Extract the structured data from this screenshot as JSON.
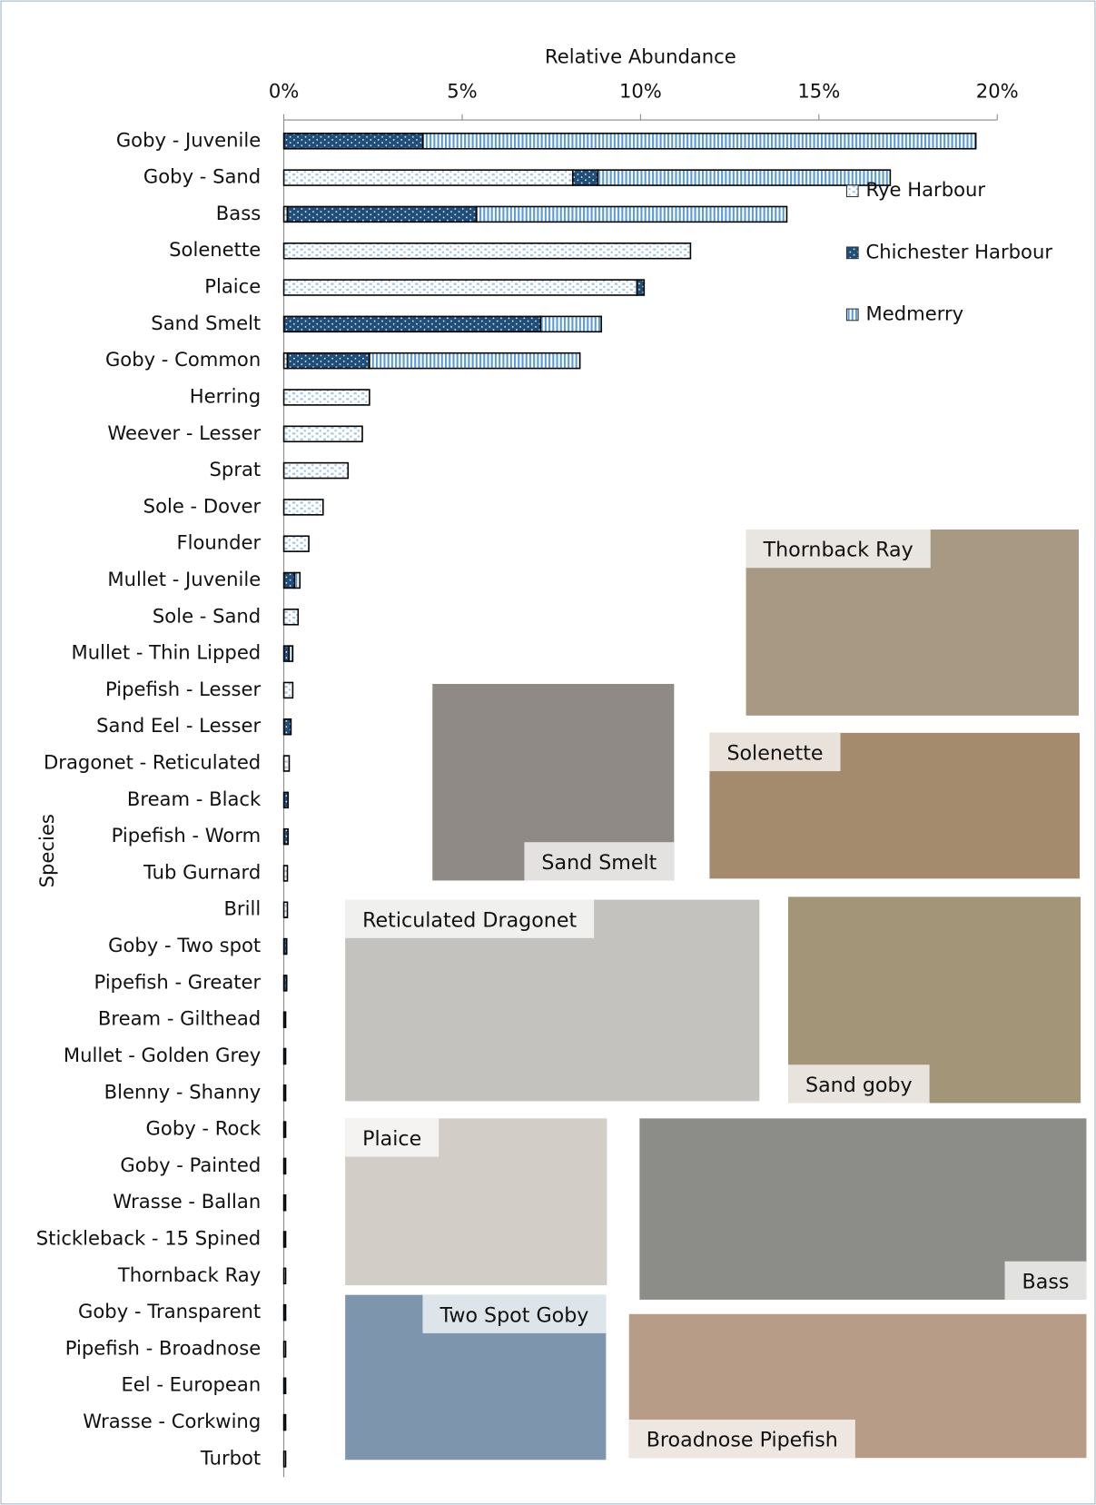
{
  "chart_data": {
    "type": "stacked-bar-horizontal",
    "x_label": "Relative Abundance",
    "y_label": "Species",
    "categories": [
      "Goby - Juvenile",
      "Goby - Sand",
      "Bass",
      "Solenette",
      "Plaice",
      "Sand Smelt",
      "Goby - Common",
      "Herring",
      "Weever - Lesser",
      "Sprat",
      "Sole - Dover",
      "Flounder",
      "Mullet - Juvenile",
      "Sole - Sand",
      "Mullet - Thin Lipped",
      "Pipefish - Lesser",
      "Sand Eel - Lesser",
      "Dragonet - Reticulated",
      "Bream - Black",
      "Pipefish - Worm",
      "Tub Gurnard",
      "Brill",
      "Goby - Two spot",
      "Pipefish - Greater",
      "Bream - Gilthead",
      "Mullet - Golden Grey",
      "Blenny - Shanny",
      "Goby - Rock",
      "Goby - Painted",
      "Wrasse - Ballan",
      "Stickleback - 15 Spined",
      "Thornback Ray",
      "Goby - Transparent",
      "Pipefish - Broadnose",
      "Eel - European",
      "Wrasse - Corkwing",
      "Turbot"
    ],
    "series": [
      {
        "name": "Rye Harbour",
        "color": "#9dc3e6",
        "values": [
          0,
          8.1,
          0.1,
          11.4,
          9.9,
          0,
          0.1,
          2.4,
          2.2,
          1.8,
          1.1,
          0.7,
          0,
          0.4,
          0,
          0.25,
          0,
          0.15,
          0,
          0,
          0.1,
          0.1,
          0,
          0,
          0,
          0,
          0,
          0,
          0,
          0,
          0,
          0.05,
          0,
          0.05,
          0,
          0,
          0.05
        ]
      },
      {
        "name": "Chichester Harbour",
        "color": "#1f4e79",
        "values": [
          3.9,
          0.7,
          5.3,
          0,
          0.2,
          7.2,
          2.3,
          0,
          0,
          0,
          0,
          0,
          0.3,
          0,
          0.15,
          0,
          0.2,
          0,
          0.12,
          0.12,
          0,
          0,
          0.08,
          0.08,
          0.05,
          0.05,
          0.05,
          0.05,
          0.05,
          0.05,
          0.05,
          0,
          0.05,
          0,
          0.05,
          0.05,
          0
        ]
      },
      {
        "name": "Medmerry",
        "color": "#5b9bd5",
        "values": [
          15.5,
          8.2,
          8.7,
          0,
          0,
          1.7,
          5.9,
          0,
          0,
          0,
          0,
          0,
          0.15,
          0,
          0.1,
          0,
          0,
          0,
          0,
          0,
          0,
          0,
          0,
          0,
          0,
          0,
          0,
          0,
          0,
          0,
          0,
          0,
          0,
          0,
          0,
          0,
          0
        ]
      }
    ],
    "xlim": [
      0,
      20
    ],
    "xticks": [
      {
        "value": 0,
        "label": "0%"
      },
      {
        "value": 5,
        "label": "5%"
      },
      {
        "value": 10,
        "label": "10%"
      },
      {
        "value": 15,
        "label": "15%"
      },
      {
        "value": 20,
        "label": "20%"
      }
    ],
    "legend": "right"
  },
  "photos": [
    {
      "caption": "Thornback Ray"
    },
    {
      "caption": "Sand Smelt"
    },
    {
      "caption": "Solenette"
    },
    {
      "caption": "Reticulated Dragonet"
    },
    {
      "caption": "Sand goby"
    },
    {
      "caption": "Plaice"
    },
    {
      "caption": "Bass"
    },
    {
      "caption": "Two Spot Goby"
    },
    {
      "caption": "Broadnose Pipefish"
    }
  ]
}
